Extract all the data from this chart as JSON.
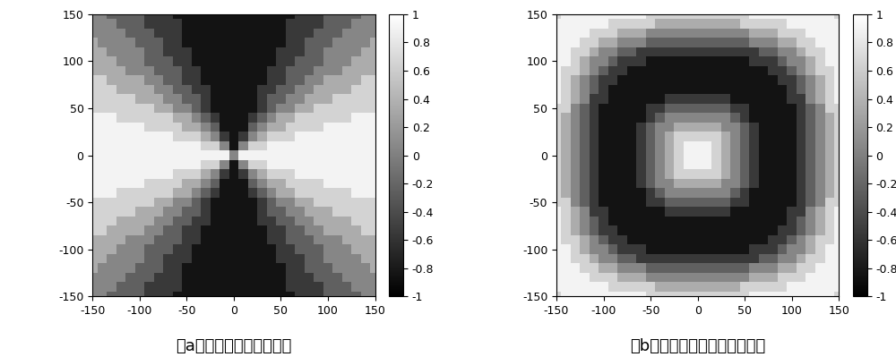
{
  "xlim": [
    -150,
    150
  ],
  "ylim": [
    -150,
    150
  ],
  "clim": [
    -1,
    1
  ],
  "xticks": [
    -150,
    -100,
    -50,
    0,
    50,
    100,
    150
  ],
  "yticks": [
    -150,
    -100,
    -50,
    0,
    50,
    100,
    150
  ],
  "colorbar_ticks": [
    -1,
    -0.8,
    -0.6,
    -0.4,
    -0.2,
    0,
    0.2,
    0.4,
    0.6,
    0.8,
    1
  ],
  "title_a": "（a）马鞍曲面固有矩分布",
  "title_b": "（b）复杂离散曲面固有矩分布",
  "title_fontsize": 13,
  "colorbar_fontsize": 9,
  "tick_fontsize": 9,
  "n_grid": 31,
  "n_fine": 301,
  "background_color": "#ffffff"
}
